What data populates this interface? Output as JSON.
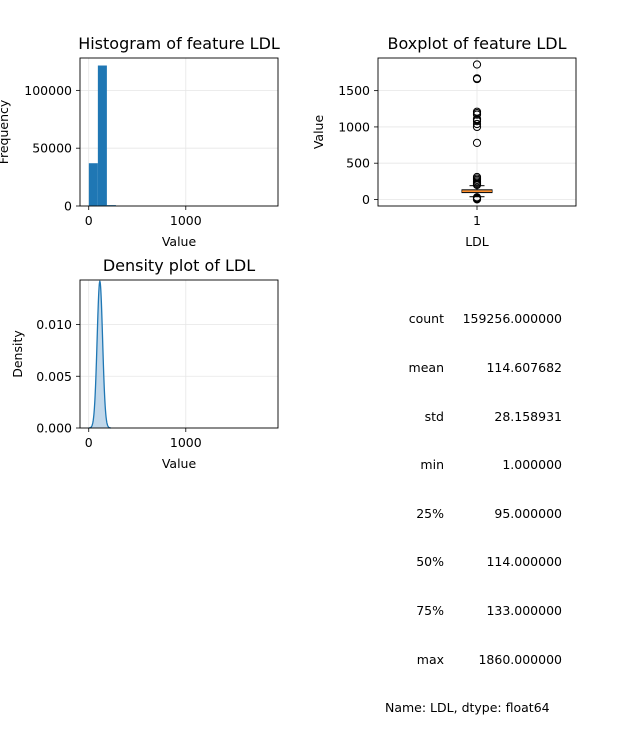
{
  "chart_data": [
    {
      "type": "bar",
      "title": "Histogram of feature LDL",
      "xlabel": "Value",
      "ylabel": "Frequency",
      "xlim": [
        -90,
        1950
      ],
      "ylim": [
        0,
        128000
      ],
      "xticks": [
        0,
        1000
      ],
      "yticks": [
        0,
        50000,
        100000
      ],
      "bin_width": 93,
      "bins_left": [
        1,
        94,
        187
      ],
      "values": [
        37000,
        121500,
        750
      ],
      "color": "#1f77b4",
      "grid": true
    },
    {
      "type": "box",
      "title": "Boxplot of feature LDL",
      "xlabel": "LDL",
      "ylabel": "Value",
      "ylim": [
        -90,
        1950
      ],
      "yticks": [
        0,
        500,
        1000,
        1500
      ],
      "xticks": [
        "1"
      ],
      "q1": 95,
      "median": 114,
      "q3": 133,
      "whisker_low": 38,
      "whisker_high": 190,
      "outliers": [
        1,
        10,
        20,
        30,
        200,
        215,
        230,
        250,
        270,
        290,
        310,
        780,
        1000,
        1040,
        1080,
        1100,
        1110,
        1170,
        1190,
        1210,
        1660,
        1670,
        1860
      ],
      "median_color": "#ff7f0e",
      "grid": true
    },
    {
      "type": "area",
      "title": "Density plot of LDL",
      "xlabel": "Value",
      "ylabel": "Density",
      "xlim": [
        -90,
        1950
      ],
      "ylim": [
        0,
        0.0143
      ],
      "xticks": [
        0,
        1000
      ],
      "yticks": [
        0.0,
        0.005,
        0.01
      ],
      "ytick_labels": [
        "0.000",
        "0.005",
        "0.010"
      ],
      "mean": 114.6,
      "std": 28.16,
      "line_color": "#1f77b4",
      "fill_color": "#a6c8e3",
      "grid": true
    }
  ],
  "stats": {
    "rows": [
      {
        "key": "count",
        "value": "159256.000000"
      },
      {
        "key": "mean",
        "value": "114.607682"
      },
      {
        "key": "std",
        "value": "28.158931"
      },
      {
        "key": "min",
        "value": "1.000000"
      },
      {
        "key": "25%",
        "value": "95.000000"
      },
      {
        "key": "50%",
        "value": "114.000000"
      },
      {
        "key": "75%",
        "value": "133.000000"
      },
      {
        "key": "max",
        "value": "1860.000000"
      }
    ],
    "footer": "Name: LDL, dtype: float64"
  }
}
